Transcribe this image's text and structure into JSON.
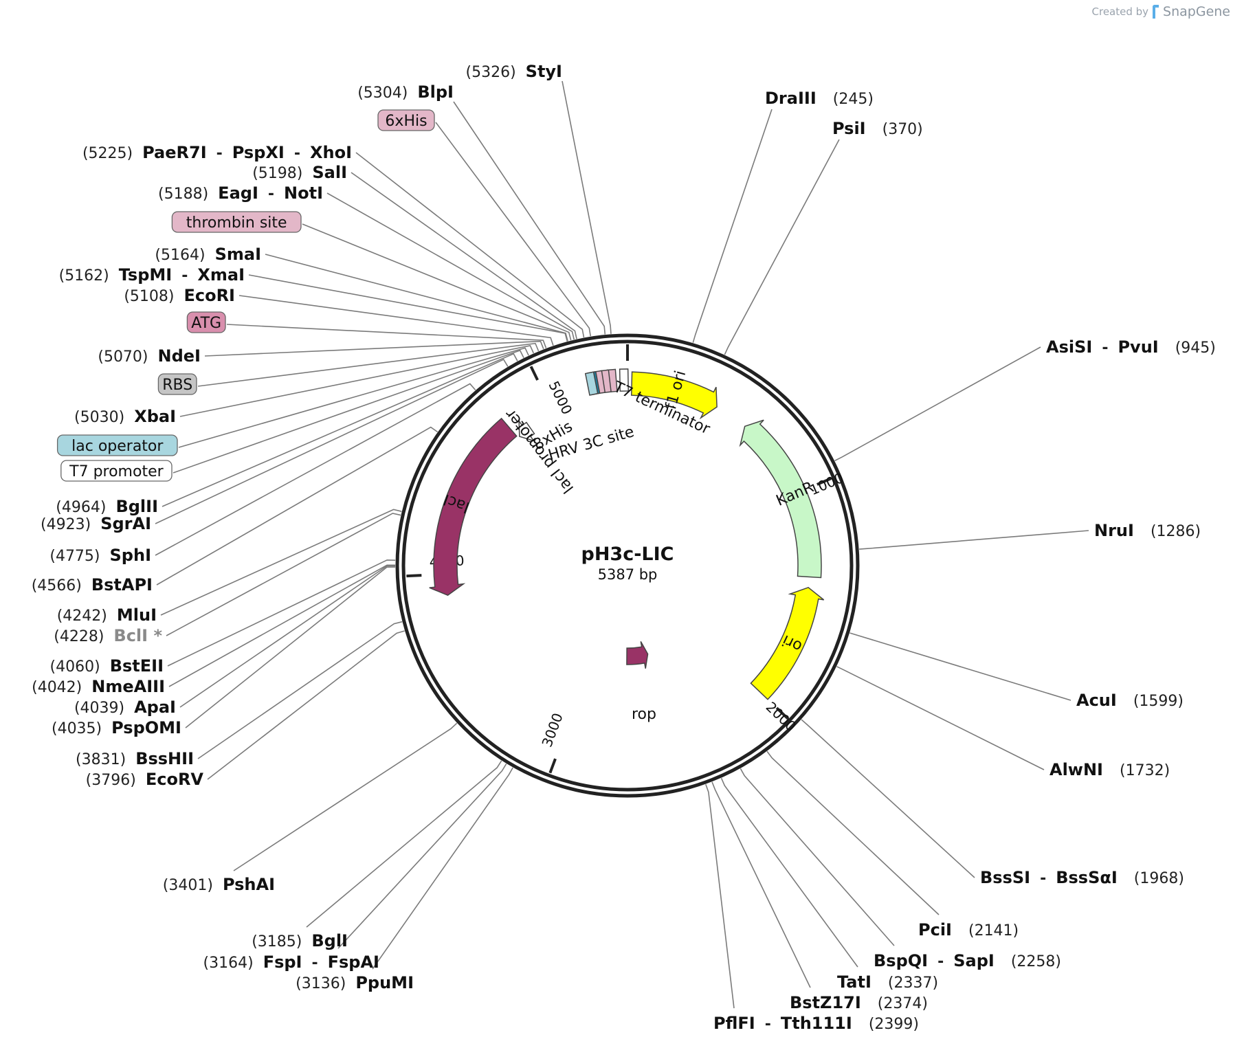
{
  "credit": {
    "prefix": "Created by",
    "brand": "SnapGene"
  },
  "plasmid": {
    "name": "pH3c-LIC",
    "size_label": "5387 bp",
    "length": 5387
  },
  "ticks": [
    {
      "pos": 1000,
      "label": "1000"
    },
    {
      "pos": 2000,
      "label": "2000"
    },
    {
      "pos": 3000,
      "label": "3000"
    },
    {
      "pos": 4000,
      "label": "4000"
    },
    {
      "pos": 5000,
      "label": "5000"
    }
  ],
  "features": [
    {
      "name": "f1 ori",
      "start": 20,
      "end": 440,
      "dir": 1,
      "color": "#ffff00"
    },
    {
      "name": "KanR",
      "start": 600,
      "end": 1400,
      "dir": -1,
      "color": "#c8f7c8"
    },
    {
      "name": "ori",
      "start": 1450,
      "end": 2000,
      "dir": -1,
      "color": "#ffff00"
    },
    {
      "name": "rop",
      "start": 2500,
      "end": 2700,
      "dir": -1,
      "color": "#993366"
    },
    {
      "name": "lacI",
      "start": 3900,
      "end": 4780,
      "dir": -1,
      "color": "#993366"
    },
    {
      "name": "lacI promoter",
      "start": 4790,
      "end": 4860,
      "dir": -1,
      "color": "#ffffff"
    }
  ],
  "inner_labels": [
    "T7 terminator",
    "8xHis",
    "HRV 3C site",
    "lacI promoter"
  ],
  "sites": [
    {
      "names": [
        "StyI"
      ],
      "pos": "(5326)"
    },
    {
      "names": [
        "BlpI"
      ],
      "pos": "(5304)"
    },
    {
      "names": [
        "6xHis"
      ],
      "pos": "",
      "box": "#e3b7c8"
    },
    {
      "names": [
        "PaeR7I",
        "PspXI",
        "XhoI"
      ],
      "pos": "(5225)"
    },
    {
      "names": [
        "SalI"
      ],
      "pos": "(5198)"
    },
    {
      "names": [
        "EagI",
        "NotI"
      ],
      "pos": "(5188)"
    },
    {
      "names": [
        "thrombin site"
      ],
      "pos": "",
      "box": "#e3b7c8"
    },
    {
      "names": [
        "SmaI"
      ],
      "pos": "(5164)"
    },
    {
      "names": [
        "TspMI",
        "XmaI"
      ],
      "pos": "(5162)"
    },
    {
      "names": [
        "EcoRI"
      ],
      "pos": "(5108)"
    },
    {
      "names": [
        "ATG"
      ],
      "pos": "",
      "box": "#d98fad"
    },
    {
      "names": [
        "NdeI"
      ],
      "pos": "(5070)"
    },
    {
      "names": [
        "RBS"
      ],
      "pos": "",
      "box": "#c5c5c5"
    },
    {
      "names": [
        "XbaI"
      ],
      "pos": "(5030)"
    },
    {
      "names": [
        "lac operator"
      ],
      "pos": "",
      "box": "#a8d6df"
    },
    {
      "names": [
        "T7 promoter"
      ],
      "pos": "",
      "box": "#ffffff"
    },
    {
      "names": [
        "BglII"
      ],
      "pos": "(4964)"
    },
    {
      "names": [
        "SgrAI"
      ],
      "pos": "(4923)"
    },
    {
      "names": [
        "SphI"
      ],
      "pos": "(4775)"
    },
    {
      "names": [
        "BstAPI"
      ],
      "pos": "(4566)"
    },
    {
      "names": [
        "MluI"
      ],
      "pos": "(4242)"
    },
    {
      "names": [
        "BclI *"
      ],
      "pos": "(4228)",
      "grey": true
    },
    {
      "names": [
        "BstEII"
      ],
      "pos": "(4060)"
    },
    {
      "names": [
        "NmeAIII"
      ],
      "pos": "(4042)"
    },
    {
      "names": [
        "ApaI"
      ],
      "pos": "(4039)"
    },
    {
      "names": [
        "PspOMI"
      ],
      "pos": "(4035)"
    },
    {
      "names": [
        "BssHII"
      ],
      "pos": "(3831)"
    },
    {
      "names": [
        "EcoRV"
      ],
      "pos": "(3796)"
    },
    {
      "names": [
        "PshAI"
      ],
      "pos": "(3401)"
    },
    {
      "names": [
        "BglI"
      ],
      "pos": "(3185)"
    },
    {
      "names": [
        "FspI",
        "FspAI"
      ],
      "pos": "(3164)"
    },
    {
      "names": [
        "PpuMI"
      ],
      "pos": "(3136)"
    },
    {
      "names": [
        "DraIII"
      ],
      "pos": "(245)"
    },
    {
      "names": [
        "PsiI"
      ],
      "pos": "(370)"
    },
    {
      "names": [
        "AsiSI",
        "PvuI"
      ],
      "pos": "(945)"
    },
    {
      "names": [
        "NruI"
      ],
      "pos": "(1286)"
    },
    {
      "names": [
        "AcuI"
      ],
      "pos": "(1599)"
    },
    {
      "names": [
        "AlwNI"
      ],
      "pos": "(1732)"
    },
    {
      "names": [
        "BssSI",
        "BssSαI"
      ],
      "pos": "(1968)"
    },
    {
      "names": [
        "PciI"
      ],
      "pos": "(2141)"
    },
    {
      "names": [
        "BspQI",
        "SapI"
      ],
      "pos": "(2258)"
    },
    {
      "names": [
        "TatI"
      ],
      "pos": "(2337)"
    },
    {
      "names": [
        "BstZ17I"
      ],
      "pos": "(2374)"
    },
    {
      "names": [
        "PflFI",
        "Tth111I"
      ],
      "pos": "(2399)"
    }
  ]
}
